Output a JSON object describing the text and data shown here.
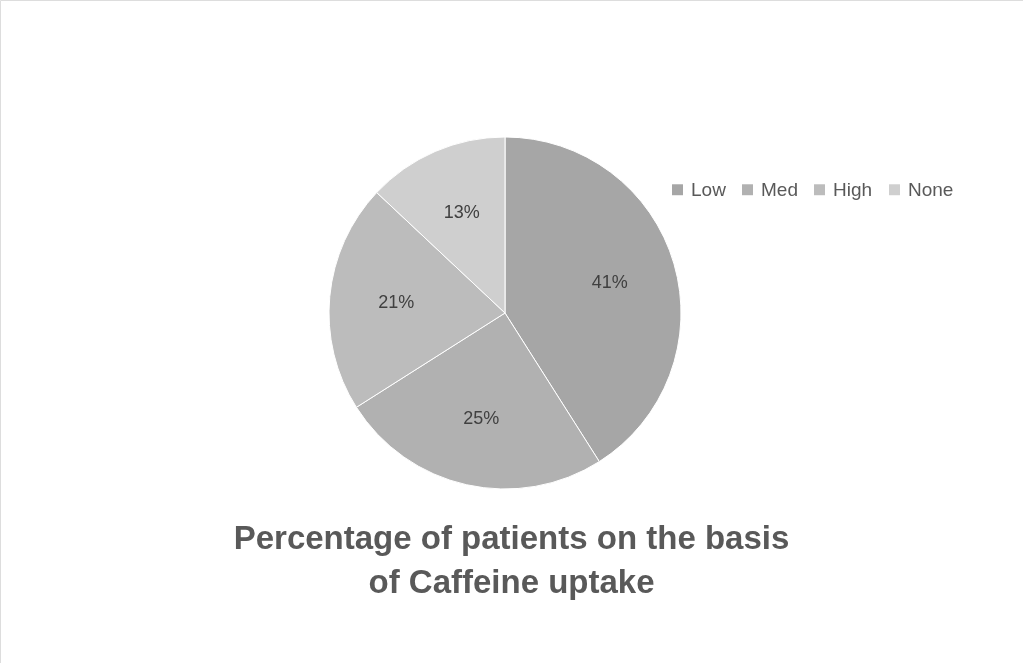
{
  "chart_data": {
    "type": "pie",
    "title": "Percentage of patients on the basis of Caffeine uptake",
    "categories": [
      "Low",
      "Med",
      "High",
      "None"
    ],
    "values": [
      41,
      25,
      21,
      13
    ],
    "colors": [
      "#a6a6a6",
      "#b1b1b1",
      "#bcbcbc",
      "#cfcfcf"
    ],
    "value_labels": [
      "41%",
      "25%",
      "21%",
      "13%"
    ],
    "legend": "top right"
  }
}
